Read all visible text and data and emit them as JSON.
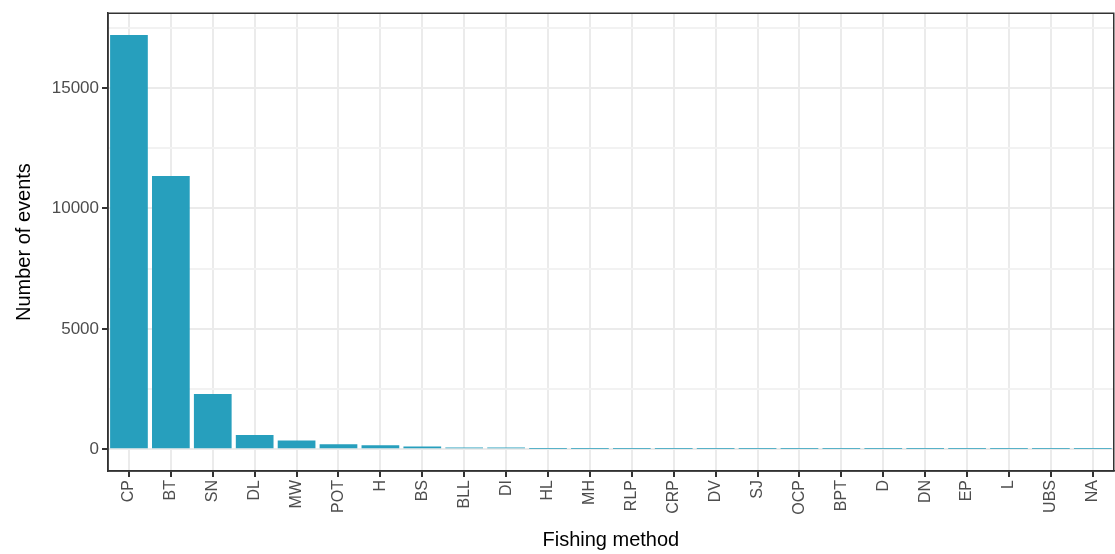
{
  "chart_data": {
    "type": "bar",
    "xlabel": "Fishing method",
    "ylabel": "Number of events",
    "categories": [
      "CP",
      "BT",
      "SN",
      "DL",
      "MW",
      "POT",
      "H",
      "BS",
      "BLL",
      "DI",
      "HL",
      "MH",
      "RLP",
      "CRP",
      "DV",
      "SJ",
      "OCP",
      "BPT",
      "D",
      "DN",
      "EP",
      "L",
      "UBS",
      "NA"
    ],
    "values": [
      17200,
      11340,
      2300,
      590,
      370,
      210,
      170,
      120,
      80,
      80,
      10,
      10,
      10,
      10,
      10,
      10,
      10,
      10,
      10,
      10,
      10,
      10,
      10,
      10
    ],
    "color": "#279fbd",
    "ylim": [
      -900,
      18100
    ],
    "yticks": [
      0,
      {
        "value": 2500,
        "label": null
      },
      5000,
      {
        "value": 7500,
        "label": null
      },
      10000,
      {
        "value": 12500,
        "label": null
      },
      15000,
      {
        "value": 17500,
        "label": null
      }
    ],
    "grid": true
  }
}
